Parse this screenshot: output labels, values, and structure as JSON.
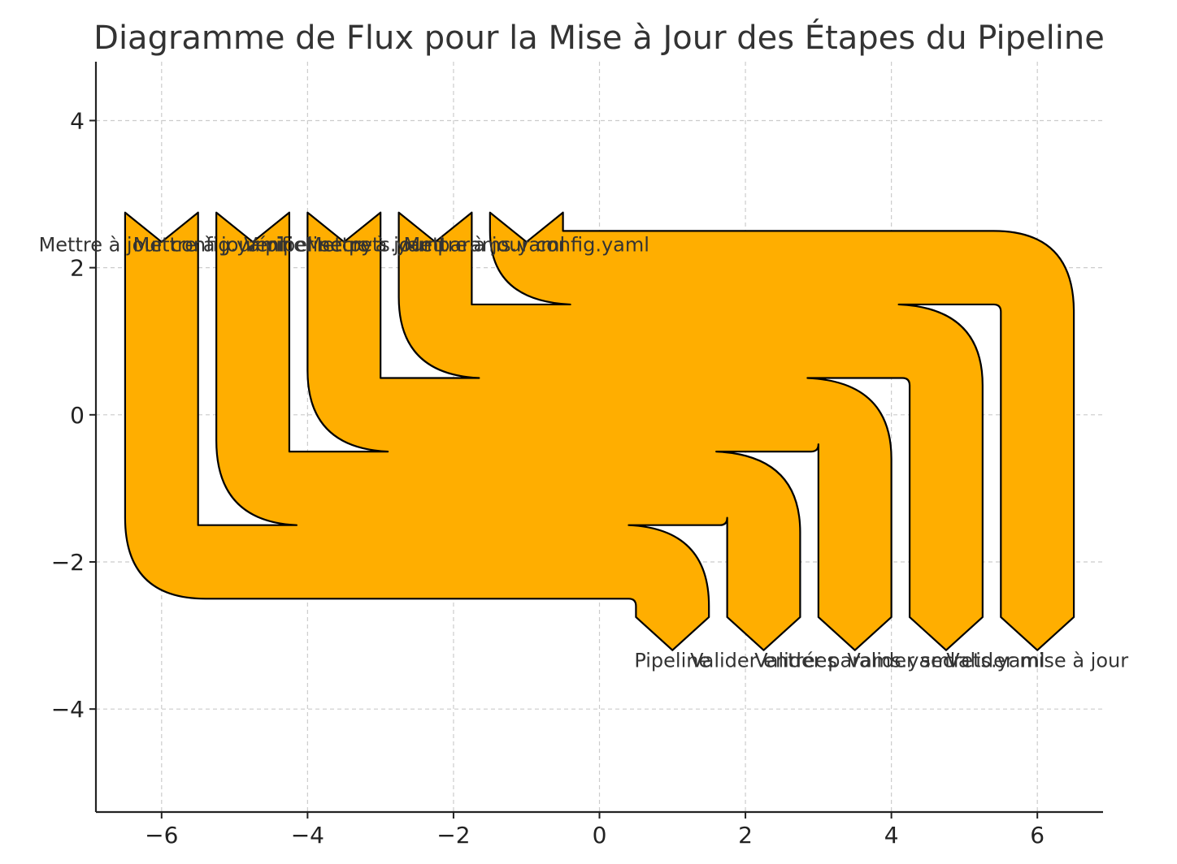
{
  "chart_data": {
    "type": "sankey",
    "title": "Diagramme de Flux pour la Mise à Jour des Étapes du Pipeline",
    "xlabel": "",
    "ylabel": "",
    "xlim": [
      -6.9,
      6.9
    ],
    "ylim": [
      -5.4,
      4.8
    ],
    "xticks": [
      -6,
      -4,
      -2,
      0,
      2,
      4,
      6
    ],
    "yticks": [
      -4,
      -2,
      0,
      2,
      4
    ],
    "xtick_labels": [
      "−6",
      "−4",
      "−2",
      "0",
      "2",
      "4",
      "6"
    ],
    "ytick_labels": [
      "−4",
      "−2",
      "0",
      "2",
      "4"
    ],
    "grid": true,
    "flow_color": "#ffae00",
    "edge_color": "#000000",
    "inputs": [
      {
        "label": "Mettre à jour config.yaml",
        "value": 1
      },
      {
        "label": "Mettre à jour pipeline.py",
        "value": 1
      },
      {
        "label": "Vérifier secrets.yaml",
        "value": 1
      },
      {
        "label": "Mettre à jour params.yaml",
        "value": 1
      },
      {
        "label": "Mettre à jour config.yaml",
        "value": 1
      }
    ],
    "outputs": [
      {
        "label": "Pipeline",
        "value": 1
      },
      {
        "label": "Valider entrées",
        "value": 1
      },
      {
        "label": "Valider params.yaml",
        "value": 1
      },
      {
        "label": "Valider secrets.yaml",
        "value": 1
      },
      {
        "label": "Valider mise à jour",
        "value": 1
      }
    ]
  }
}
